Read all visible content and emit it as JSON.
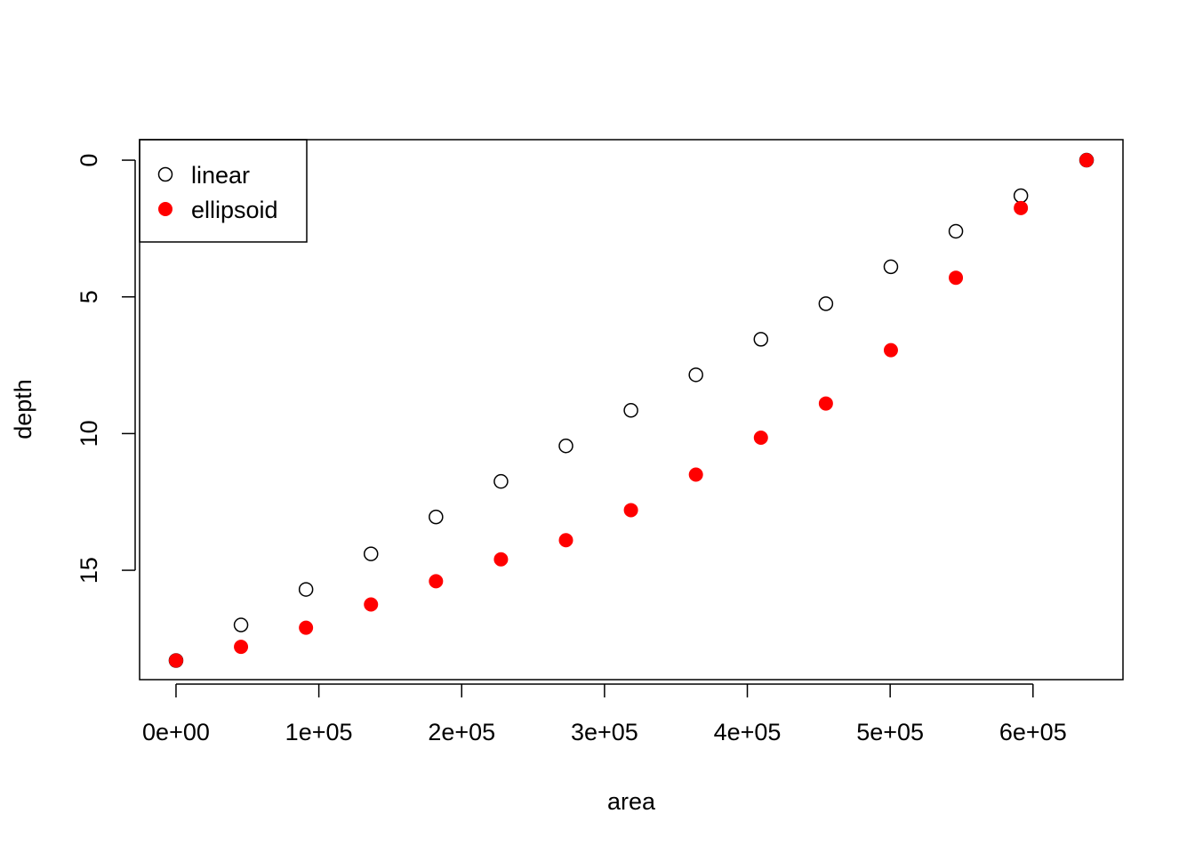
{
  "chart_data": {
    "type": "scatter",
    "title": "",
    "xlabel": "area",
    "ylabel": "depth",
    "xlim": [
      -25500,
      663000
    ],
    "ylim": [
      19.0,
      -0.75
    ],
    "y_reversed": true,
    "grid": false,
    "legend": {
      "position": "top-left",
      "entries": [
        {
          "label": "linear",
          "marker": "open-circle",
          "color": "#000000"
        },
        {
          "label": "ellipsoid",
          "marker": "filled-circle",
          "color": "#ff0000"
        }
      ]
    },
    "x_ticks": [
      {
        "value": 0,
        "label": "0e+00"
      },
      {
        "value": 100000,
        "label": "1e+05"
      },
      {
        "value": 200000,
        "label": "2e+05"
      },
      {
        "value": 300000,
        "label": "3e+05"
      },
      {
        "value": 400000,
        "label": "4e+05"
      },
      {
        "value": 500000,
        "label": "5e+05"
      },
      {
        "value": 600000,
        "label": "6e+05"
      }
    ],
    "y_ticks": [
      {
        "value": 0,
        "label": "0"
      },
      {
        "value": 5,
        "label": "5"
      },
      {
        "value": 10,
        "label": "10"
      },
      {
        "value": 15,
        "label": "15"
      }
    ],
    "series": [
      {
        "name": "linear",
        "marker": "open-circle",
        "color": "#000000",
        "x": [
          0,
          45500,
          91000,
          136500,
          182000,
          227500,
          273000,
          318500,
          364000,
          409500,
          455000,
          500500,
          546000,
          591500,
          637500
        ],
        "y": [
          18.3,
          17.0,
          15.7,
          14.4,
          13.05,
          11.75,
          10.45,
          9.15,
          7.85,
          6.55,
          5.25,
          3.9,
          2.6,
          1.3,
          0
        ]
      },
      {
        "name": "ellipsoid",
        "marker": "filled-circle",
        "color": "#ff0000",
        "x": [
          0,
          45500,
          91000,
          136500,
          182000,
          227500,
          273000,
          318500,
          364000,
          409500,
          455000,
          500500,
          546000,
          591500,
          637500
        ],
        "y": [
          18.3,
          17.8,
          17.1,
          16.25,
          15.4,
          14.6,
          13.9,
          12.8,
          11.5,
          10.15,
          8.9,
          6.95,
          4.3,
          1.75,
          0
        ]
      }
    ]
  }
}
